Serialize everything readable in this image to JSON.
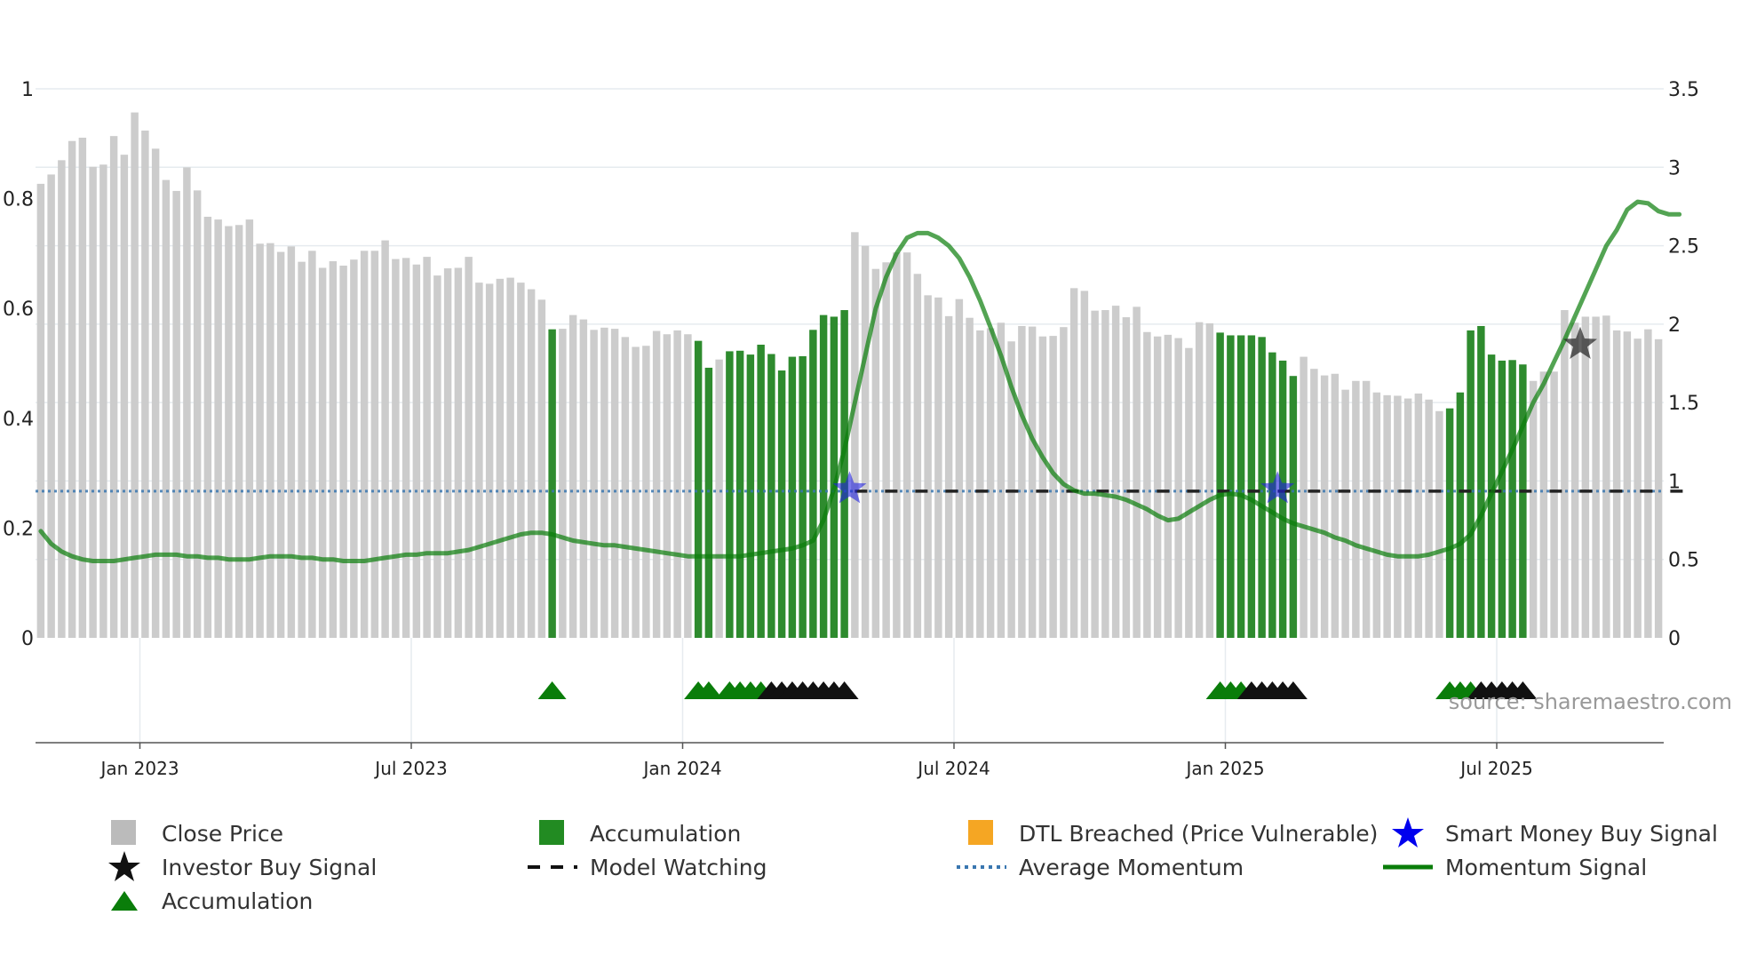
{
  "chart_data": {
    "type": "bar",
    "y_left": {
      "ylim": [
        0,
        1
      ],
      "ticks": [
        "0",
        "0.2",
        "0.4",
        "0.6",
        "0.8",
        "1"
      ],
      "tick_values": [
        0,
        0.2,
        0.4,
        0.6,
        0.8,
        1
      ]
    },
    "y_right": {
      "ylim": [
        0,
        3.5
      ],
      "ticks": [
        "0",
        "0.5",
        "1",
        "1.5",
        "2",
        "2.5",
        "3",
        "3.5"
      ],
      "tick_values": [
        0,
        0.5,
        1,
        1.5,
        2,
        2.5,
        3,
        3.5
      ]
    },
    "x_ticks": [
      {
        "label": "Jan 2023",
        "week": 9.5
      },
      {
        "label": "Jul 2023",
        "week": 35.5
      },
      {
        "label": "Jan 2024",
        "week": 61.5
      },
      {
        "label": "Jul 2024",
        "week": 87.5
      },
      {
        "label": "Jan 2025",
        "week": 113.5
      },
      {
        "label": "Jul 2025",
        "week": 139.5
      }
    ],
    "close_price": [
      0.827,
      0.844,
      0.87,
      0.905,
      0.911,
      0.858,
      0.862,
      0.914,
      0.88,
      0.957,
      0.924,
      0.891,
      0.834,
      0.814,
      0.857,
      0.815,
      0.767,
      0.762,
      0.75,
      0.752,
      0.762,
      0.718,
      0.719,
      0.703,
      0.713,
      0.685,
      0.705,
      0.674,
      0.686,
      0.678,
      0.689,
      0.705,
      0.705,
      0.724,
      0.69,
      0.692,
      0.68,
      0.694,
      0.66,
      0.673,
      0.674,
      0.694,
      0.647,
      0.645,
      0.654,
      0.656,
      0.647,
      0.635,
      0.616,
      0.562,
      0.563,
      0.588,
      0.58,
      0.561,
      0.565,
      0.563,
      0.548,
      0.53,
      0.532,
      0.559,
      0.553,
      0.56,
      0.553,
      0.541,
      0.492,
      0.507,
      0.522,
      0.523,
      0.516,
      0.534,
      0.517,
      0.487,
      0.512,
      0.513,
      0.561,
      0.588,
      0.585,
      0.597,
      0.739,
      0.714,
      0.672,
      0.684,
      0.702,
      0.702,
      0.663,
      0.624,
      0.62,
      0.586,
      0.617,
      0.583,
      0.56,
      0.564,
      0.574,
      0.54,
      0.568,
      0.567,
      0.549,
      0.55,
      0.566,
      0.637,
      0.632,
      0.596,
      0.597,
      0.605,
      0.584,
      0.603,
      0.557,
      0.549,
      0.552,
      0.546,
      0.528,
      0.575,
      0.573,
      0.556,
      0.551,
      0.551,
      0.551,
      0.548,
      0.52,
      0.505,
      0.477,
      0.512,
      0.49,
      0.478,
      0.481,
      0.452,
      0.468,
      0.468,
      0.447,
      0.442,
      0.441,
      0.436,
      0.445,
      0.434,
      0.413,
      0.418,
      0.447,
      0.56,
      0.568,
      0.516,
      0.505,
      0.506,
      0.498,
      0.468,
      0.485,
      0.485,
      0.597,
      0.574,
      0.585,
      0.585,
      0.587,
      0.56,
      0.558,
      0.545,
      0.562,
      0.544
    ],
    "accumulation_bars": [
      49,
      63,
      64,
      66,
      67,
      68,
      69,
      70,
      71,
      72,
      73,
      74,
      75,
      76,
      77,
      113,
      114,
      115,
      116,
      117,
      118,
      119,
      120,
      135,
      136,
      137,
      138,
      139,
      140,
      141,
      142
    ],
    "momentum_signal": [
      0.68,
      0.6,
      0.55,
      0.52,
      0.5,
      0.49,
      0.49,
      0.49,
      0.5,
      0.51,
      0.52,
      0.53,
      0.53,
      0.53,
      0.52,
      0.52,
      0.51,
      0.51,
      0.5,
      0.5,
      0.5,
      0.51,
      0.52,
      0.52,
      0.52,
      0.51,
      0.51,
      0.5,
      0.5,
      0.49,
      0.49,
      0.49,
      0.5,
      0.51,
      0.52,
      0.53,
      0.53,
      0.54,
      0.54,
      0.54,
      0.55,
      0.56,
      0.58,
      0.6,
      0.62,
      0.64,
      0.66,
      0.67,
      0.67,
      0.66,
      0.64,
      0.62,
      0.61,
      0.6,
      0.59,
      0.59,
      0.58,
      0.57,
      0.56,
      0.55,
      0.54,
      0.53,
      0.52,
      0.52,
      0.52,
      0.52,
      0.52,
      0.52,
      0.53,
      0.54,
      0.55,
      0.56,
      0.57,
      0.59,
      0.62,
      0.75,
      0.95,
      1.2,
      1.5,
      1.8,
      2.1,
      2.3,
      2.45,
      2.55,
      2.58,
      2.58,
      2.55,
      2.5,
      2.42,
      2.3,
      2.15,
      1.98,
      1.8,
      1.6,
      1.42,
      1.27,
      1.15,
      1.05,
      0.98,
      0.94,
      0.92,
      0.92,
      0.91,
      0.9,
      0.88,
      0.85,
      0.82,
      0.78,
      0.75,
      0.76,
      0.8,
      0.84,
      0.88,
      0.91,
      0.92,
      0.91,
      0.88,
      0.84,
      0.8,
      0.76,
      0.73,
      0.71,
      0.69,
      0.67,
      0.64,
      0.62,
      0.59,
      0.57,
      0.55,
      0.53,
      0.52,
      0.52,
      0.52,
      0.53,
      0.55,
      0.57,
      0.6,
      0.66,
      0.78,
      0.92,
      1.06,
      1.2,
      1.35,
      1.5,
      1.62,
      1.76,
      1.9,
      2.05,
      2.2,
      2.35,
      2.5,
      2.6,
      2.73,
      2.78,
      2.77,
      2.72,
      2.7,
      2.7
    ],
    "average_momentum": 0.935,
    "model_watching": {
      "level": 0.935,
      "start_week": 78,
      "end_week": 159
    },
    "smart_money_buy_signals": [
      {
        "week": 77.5,
        "value": 0.95
      },
      {
        "week": 118.5,
        "value": 0.95
      }
    ],
    "investor_buy_signals": [
      {
        "week": 147.5,
        "value": 1.87
      }
    ],
    "accumulation_markers": [
      49,
      63,
      64,
      66,
      67,
      68,
      69,
      70,
      71,
      72,
      73,
      74,
      75,
      76,
      77,
      113,
      114,
      115,
      116,
      117,
      118,
      119,
      120,
      135,
      136,
      137,
      138,
      139,
      140,
      141,
      142
    ],
    "accumulation_marker_colors": [
      "green",
      "green",
      "green",
      "green",
      "green",
      "green",
      "green",
      "black",
      "black",
      "black",
      "black",
      "black",
      "black",
      "black",
      "black",
      "green",
      "green",
      "green",
      "black",
      "black",
      "black",
      "black",
      "black",
      "green",
      "green",
      "green",
      "black",
      "black",
      "black",
      "black",
      "black"
    ],
    "source": "source: sharemaestro.com"
  },
  "legend": [
    {
      "label": "Close Price",
      "color": "#bbbbbb",
      "symbol": "square"
    },
    {
      "label": "Accumulation",
      "color": "#228b22",
      "symbol": "square"
    },
    {
      "label": "DTL Breached (Price Vulnerable)",
      "color": "#f5a623",
      "symbol": "square"
    },
    {
      "label": "Smart Money Buy Signal",
      "color": "#0000ee",
      "symbol": "star"
    },
    {
      "label": "Investor Buy Signal",
      "color": "#111111",
      "symbol": "star"
    },
    {
      "label": "Model Watching",
      "color": "#111111",
      "symbol": "dash"
    },
    {
      "label": "Average Momentum",
      "color": "#3a77b0",
      "symbol": "dot"
    },
    {
      "label": "Momentum Signal",
      "color": "#0a7d0a",
      "symbol": "line"
    },
    {
      "label": "Accumulation",
      "color": "#0a7d0a",
      "symbol": "triangle"
    }
  ]
}
